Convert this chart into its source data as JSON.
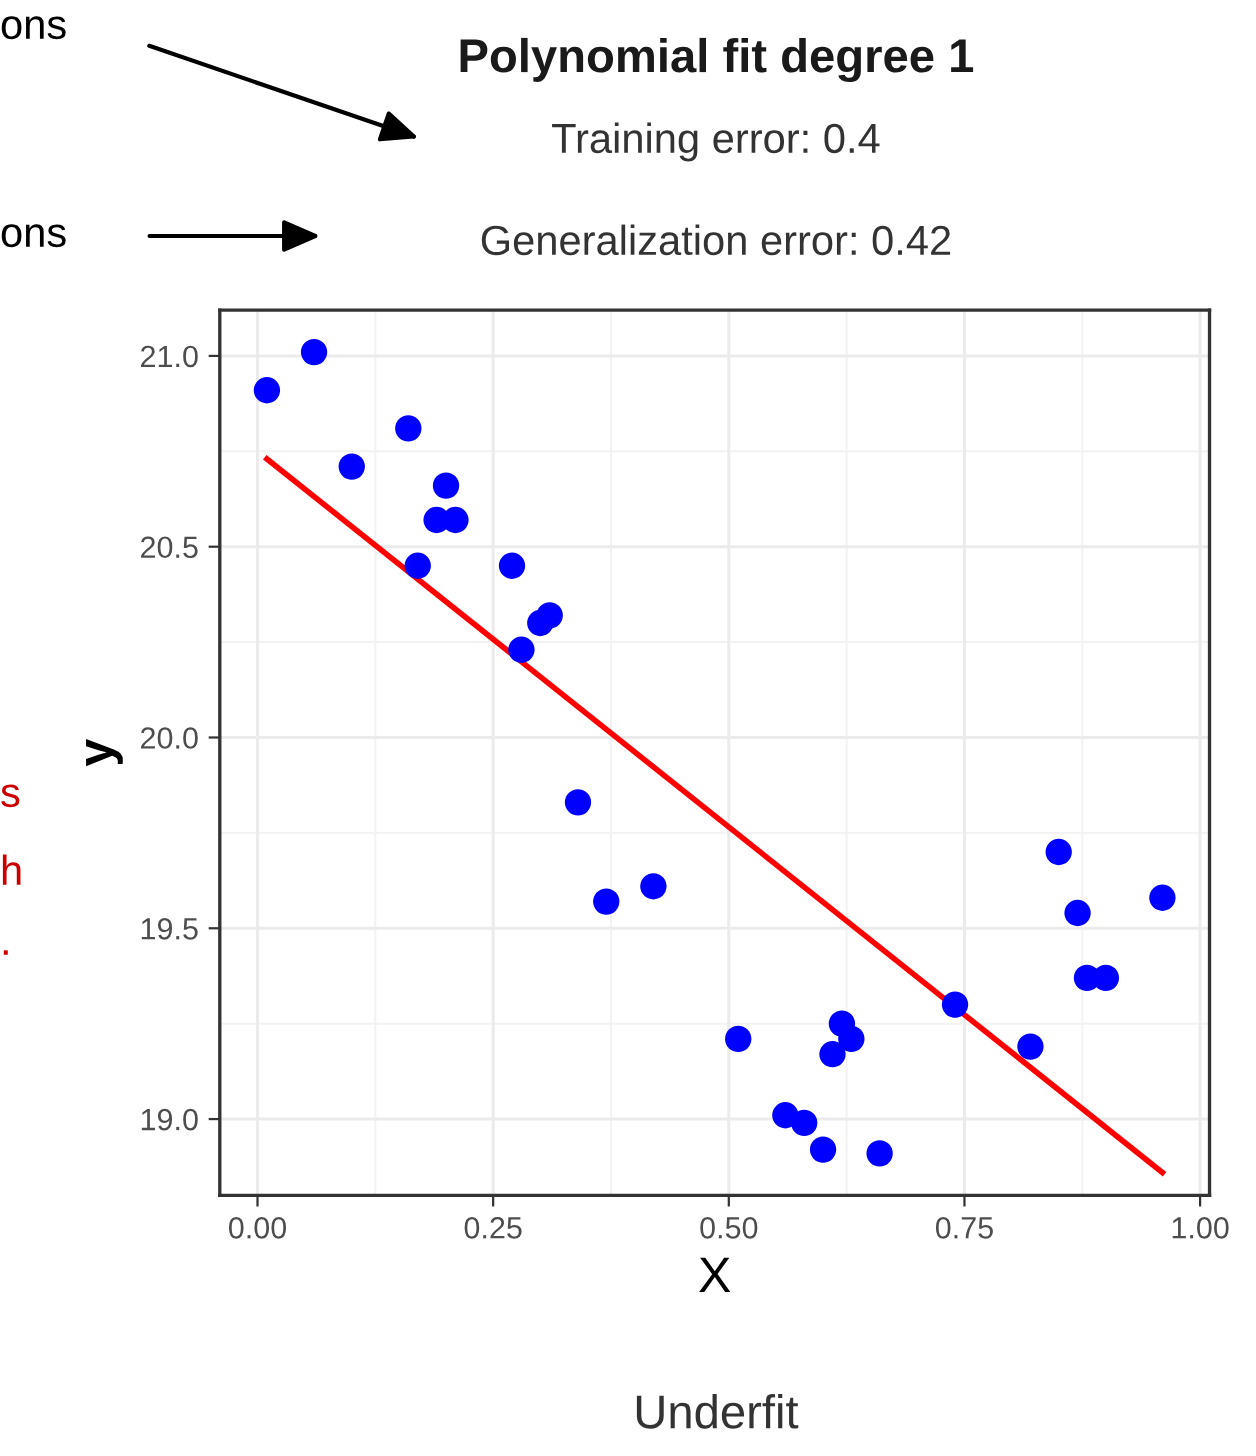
{
  "chart_data": {
    "type": "scatter",
    "title": "Polynomial fit degree 1",
    "subtitle": "Training error: 0.4",
    "xlabel": "X",
    "ylabel": "y",
    "annotations": [
      "Generalization error: 0.42",
      "Underfit",
      "ons",
      "ons",
      "s",
      "h",
      "."
    ],
    "series": [
      {
        "marker": "circle",
        "color": "#0000ff",
        "x": [
          0.01,
          0.06,
          0.1,
          0.16,
          0.2,
          0.19,
          0.21,
          0.17,
          0.27,
          0.28,
          0.3,
          0.31,
          0.34,
          0.37,
          0.42,
          0.51,
          0.56,
          0.58,
          0.6,
          0.66,
          0.61,
          0.62,
          0.63,
          0.74,
          0.82,
          0.85,
          0.87,
          0.88,
          0.9,
          0.96
        ],
        "values": [
          20.91,
          21.01,
          20.71,
          20.81,
          20.66,
          20.57,
          20.57,
          20.45,
          20.45,
          20.23,
          20.3,
          20.32,
          19.83,
          19.57,
          19.61,
          19.21,
          19.01,
          18.99,
          18.92,
          18.91,
          19.17,
          19.25,
          19.21,
          19.3,
          19.19,
          19.7,
          19.54,
          19.37,
          19.37,
          19.58
        ]
      },
      {
        "type": "line",
        "color": "#ff0000",
        "x": [
          0.01,
          0.96
        ],
        "values": [
          20.73,
          18.86
        ]
      }
    ],
    "xlim": [
      -0.04,
      1.01
    ],
    "ylim": [
      18.8,
      21.12
    ],
    "xticks": [
      {
        "value": 0,
        "label": "0.00"
      },
      {
        "value": 0.25,
        "label": "0.25"
      },
      {
        "value": 0.5,
        "label": "0.50"
      },
      {
        "value": 0.75,
        "label": "0.75"
      },
      {
        "value": 1,
        "label": "1.00"
      }
    ],
    "yticks": [
      {
        "value": 19,
        "label": "19.0"
      },
      {
        "value": 19.5,
        "label": "19.5"
      },
      {
        "value": 20,
        "label": "20.0"
      },
      {
        "value": 20.5,
        "label": "20.5"
      },
      {
        "value": 21,
        "label": "21.0"
      }
    ],
    "grid": true,
    "legend": false
  }
}
